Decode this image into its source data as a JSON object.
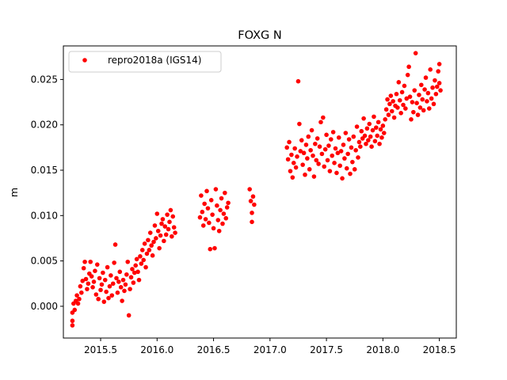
{
  "chart_data": {
    "type": "scatter",
    "title": "FOXG N",
    "xlabel": "",
    "ylabel": "m",
    "xlim": [
      2015.17,
      2018.65
    ],
    "ylim": [
      -0.0035,
      0.0287
    ],
    "xticks": [
      2015.5,
      2016.0,
      2016.5,
      2017.0,
      2017.5,
      2018.0,
      2018.5
    ],
    "xtick_labels": [
      "2015.5",
      "2016.0",
      "2016.5",
      "2017.0",
      "2017.5",
      "2018.0",
      "2018.5"
    ],
    "yticks": [
      0.0,
      0.005,
      0.01,
      0.015,
      0.02,
      0.025
    ],
    "ytick_labels": [
      "0.000",
      "0.005",
      "0.010",
      "0.015",
      "0.020",
      "0.025"
    ],
    "grid": false,
    "legend_position": "top-left",
    "series": [
      {
        "name": "repro2018a (IGS14)",
        "color": "#ff0000",
        "marker": "circle",
        "points": [
          [
            2015.25,
            -0.0021
          ],
          [
            2015.25,
            -0.0016
          ],
          [
            2015.25,
            -0.0007
          ],
          [
            2015.26,
            0.0003
          ],
          [
            2015.27,
            -0.0004
          ],
          [
            2015.28,
            0.0006
          ],
          [
            2015.29,
            0.0012
          ],
          [
            2015.3,
            0.0003
          ],
          [
            2015.31,
            0.0008
          ],
          [
            2015.32,
            0.0022
          ],
          [
            2015.33,
            0.0015
          ],
          [
            2015.34,
            0.0028
          ],
          [
            2015.35,
            0.0042
          ],
          [
            2015.36,
            0.0049
          ],
          [
            2015.37,
            0.003
          ],
          [
            2015.38,
            0.0019
          ],
          [
            2015.39,
            0.0025
          ],
          [
            2015.4,
            0.0036
          ],
          [
            2015.41,
            0.0049
          ],
          [
            2015.42,
            0.0033
          ],
          [
            2015.43,
            0.0021
          ],
          [
            2015.44,
            0.0027
          ],
          [
            2015.45,
            0.0039
          ],
          [
            2015.46,
            0.0013
          ],
          [
            2015.47,
            0.0046
          ],
          [
            2015.48,
            0.0008
          ],
          [
            2015.49,
            0.0031
          ],
          [
            2015.5,
            0.0018
          ],
          [
            2015.51,
            0.0024
          ],
          [
            2015.52,
            0.0037
          ],
          [
            2015.53,
            0.0005
          ],
          [
            2015.54,
            0.0029
          ],
          [
            2015.55,
            0.0016
          ],
          [
            2015.56,
            0.0043
          ],
          [
            2015.57,
            0.0009
          ],
          [
            2015.58,
            0.0022
          ],
          [
            2015.59,
            0.0034
          ],
          [
            2015.6,
            0.0012
          ],
          [
            2015.61,
            0.0025
          ],
          [
            2015.62,
            0.0048
          ],
          [
            2015.63,
            0.0068
          ],
          [
            2015.64,
            0.0031
          ],
          [
            2015.65,
            0.0015
          ],
          [
            2015.66,
            0.0027
          ],
          [
            2015.67,
            0.0038
          ],
          [
            2015.68,
            0.0021
          ],
          [
            2015.69,
            0.0006
          ],
          [
            2015.7,
            0.0029
          ],
          [
            2015.71,
            0.0017
          ],
          [
            2015.72,
            0.0024
          ],
          [
            2015.73,
            0.0035
          ],
          [
            2015.74,
            0.0049
          ],
          [
            2015.75,
            -0.001
          ],
          [
            2015.76,
            0.0019
          ],
          [
            2015.77,
            0.0032
          ],
          [
            2015.78,
            0.0041
          ],
          [
            2015.79,
            0.0026
          ],
          [
            2015.8,
            0.0037
          ],
          [
            2015.81,
            0.0045
          ],
          [
            2015.82,
            0.0052
          ],
          [
            2015.83,
            0.0038
          ],
          [
            2015.84,
            0.0029
          ],
          [
            2015.85,
            0.0055
          ],
          [
            2015.86,
            0.0047
          ],
          [
            2015.87,
            0.0062
          ],
          [
            2015.88,
            0.0051
          ],
          [
            2015.89,
            0.0069
          ],
          [
            2015.9,
            0.0043
          ],
          [
            2015.91,
            0.0058
          ],
          [
            2015.92,
            0.0073
          ],
          [
            2015.93,
            0.0062
          ],
          [
            2015.94,
            0.0081
          ],
          [
            2015.95,
            0.0067
          ],
          [
            2015.96,
            0.0056
          ],
          [
            2015.97,
            0.0071
          ],
          [
            2015.98,
            0.0089
          ],
          [
            2015.99,
            0.0075
          ],
          [
            2016.0,
            0.0102
          ],
          [
            2016.01,
            0.0083
          ],
          [
            2016.02,
            0.0064
          ],
          [
            2016.03,
            0.0078
          ],
          [
            2016.04,
            0.0091
          ],
          [
            2016.05,
            0.0096
          ],
          [
            2016.06,
            0.0072
          ],
          [
            2016.07,
            0.0088
          ],
          [
            2016.08,
            0.0079
          ],
          [
            2016.09,
            0.0101
          ],
          [
            2016.1,
            0.0085
          ],
          [
            2016.11,
            0.0093
          ],
          [
            2016.12,
            0.0106
          ],
          [
            2016.13,
            0.0077
          ],
          [
            2016.14,
            0.0099
          ],
          [
            2016.15,
            0.0087
          ],
          [
            2016.16,
            0.0081
          ],
          [
            2016.38,
            0.0098
          ],
          [
            2016.39,
            0.0122
          ],
          [
            2016.4,
            0.0104
          ],
          [
            2016.41,
            0.0089
          ],
          [
            2016.42,
            0.0113
          ],
          [
            2016.43,
            0.0096
          ],
          [
            2016.44,
            0.0127
          ],
          [
            2016.45,
            0.0108
          ],
          [
            2016.46,
            0.0092
          ],
          [
            2016.47,
            0.0063
          ],
          [
            2016.48,
            0.0117
          ],
          [
            2016.49,
            0.0101
          ],
          [
            2016.5,
            0.0086
          ],
          [
            2016.51,
            0.0064
          ],
          [
            2016.52,
            0.0129
          ],
          [
            2016.53,
            0.0111
          ],
          [
            2016.54,
            0.0095
          ],
          [
            2016.55,
            0.0083
          ],
          [
            2016.56,
            0.0106
          ],
          [
            2016.57,
            0.0119
          ],
          [
            2016.58,
            0.0091
          ],
          [
            2016.59,
            0.0102
          ],
          [
            2016.6,
            0.0125
          ],
          [
            2016.61,
            0.0097
          ],
          [
            2016.62,
            0.0109
          ],
          [
            2016.63,
            0.0114
          ],
          [
            2016.82,
            0.0129
          ],
          [
            2016.83,
            0.0116
          ],
          [
            2016.84,
            0.0103
          ],
          [
            2016.84,
            0.0093
          ],
          [
            2016.85,
            0.0121
          ],
          [
            2016.86,
            0.0112
          ],
          [
            2017.15,
            0.0175
          ],
          [
            2017.16,
            0.0162
          ],
          [
            2017.17,
            0.0181
          ],
          [
            2017.18,
            0.0149
          ],
          [
            2017.19,
            0.0167
          ],
          [
            2017.2,
            0.0142
          ],
          [
            2017.21,
            0.0158
          ],
          [
            2017.22,
            0.0174
          ],
          [
            2017.23,
            0.0153
          ],
          [
            2017.24,
            0.0165
          ],
          [
            2017.25,
            0.0248
          ],
          [
            2017.26,
            0.0201
          ],
          [
            2017.27,
            0.0171
          ],
          [
            2017.28,
            0.0183
          ],
          [
            2017.29,
            0.0156
          ],
          [
            2017.3,
            0.0169
          ],
          [
            2017.31,
            0.0145
          ],
          [
            2017.32,
            0.0178
          ],
          [
            2017.33,
            0.0163
          ],
          [
            2017.34,
            0.0187
          ],
          [
            2017.35,
            0.0151
          ],
          [
            2017.36,
            0.0172
          ],
          [
            2017.37,
            0.0194
          ],
          [
            2017.38,
            0.0166
          ],
          [
            2017.39,
            0.0143
          ],
          [
            2017.4,
            0.0179
          ],
          [
            2017.41,
            0.0161
          ],
          [
            2017.42,
            0.0185
          ],
          [
            2017.43,
            0.0157
          ],
          [
            2017.44,
            0.0176
          ],
          [
            2017.45,
            0.0203
          ],
          [
            2017.46,
            0.0168
          ],
          [
            2017.47,
            0.0208
          ],
          [
            2017.48,
            0.0154
          ],
          [
            2017.49,
            0.0173
          ],
          [
            2017.5,
            0.0189
          ],
          [
            2017.51,
            0.0161
          ],
          [
            2017.52,
            0.0177
          ],
          [
            2017.53,
            0.0149
          ],
          [
            2017.54,
            0.0184
          ],
          [
            2017.55,
            0.0166
          ],
          [
            2017.56,
            0.0192
          ],
          [
            2017.57,
            0.0158
          ],
          [
            2017.58,
            0.0174
          ],
          [
            2017.59,
            0.0147
          ],
          [
            2017.6,
            0.0169
          ],
          [
            2017.61,
            0.0186
          ],
          [
            2017.62,
            0.0155
          ],
          [
            2017.63,
            0.0171
          ],
          [
            2017.64,
            0.0141
          ],
          [
            2017.65,
            0.0178
          ],
          [
            2017.66,
            0.0163
          ],
          [
            2017.67,
            0.0191
          ],
          [
            2017.68,
            0.0152
          ],
          [
            2017.69,
            0.0168
          ],
          [
            2017.7,
            0.0184
          ],
          [
            2017.71,
            0.0146
          ],
          [
            2017.72,
            0.0175
          ],
          [
            2017.73,
            0.0159
          ],
          [
            2017.74,
            0.0187
          ],
          [
            2017.75,
            0.0151
          ],
          [
            2017.76,
            0.0172
          ],
          [
            2017.77,
            0.0198
          ],
          [
            2017.78,
            0.0164
          ],
          [
            2017.79,
            0.0181
          ],
          [
            2017.8,
            0.0176
          ],
          [
            2017.81,
            0.0193
          ],
          [
            2017.82,
            0.0185
          ],
          [
            2017.83,
            0.0207
          ],
          [
            2017.84,
            0.0188
          ],
          [
            2017.85,
            0.0179
          ],
          [
            2017.86,
            0.0196
          ],
          [
            2017.87,
            0.0183
          ],
          [
            2017.88,
            0.0201
          ],
          [
            2017.89,
            0.0187
          ],
          [
            2017.9,
            0.0176
          ],
          [
            2017.91,
            0.0194
          ],
          [
            2017.92,
            0.0209
          ],
          [
            2017.93,
            0.0182
          ],
          [
            2017.94,
            0.0197
          ],
          [
            2017.95,
            0.0188
          ],
          [
            2017.96,
            0.0203
          ],
          [
            2017.97,
            0.0179
          ],
          [
            2017.98,
            0.0195
          ],
          [
            2017.99,
            0.0186
          ],
          [
            2018.0,
            0.0199
          ],
          [
            2018.01,
            0.0191
          ],
          [
            2018.02,
            0.0206
          ],
          [
            2018.03,
            0.0217
          ],
          [
            2018.04,
            0.0228
          ],
          [
            2018.05,
            0.0211
          ],
          [
            2018.06,
            0.0223
          ],
          [
            2018.07,
            0.0232
          ],
          [
            2018.08,
            0.0215
          ],
          [
            2018.09,
            0.0226
          ],
          [
            2018.1,
            0.0208
          ],
          [
            2018.11,
            0.0221
          ],
          [
            2018.12,
            0.0234
          ],
          [
            2018.13,
            0.0219
          ],
          [
            2018.14,
            0.0247
          ],
          [
            2018.15,
            0.0227
          ],
          [
            2018.16,
            0.0213
          ],
          [
            2018.17,
            0.0236
          ],
          [
            2018.18,
            0.0222
          ],
          [
            2018.19,
            0.0243
          ],
          [
            2018.2,
            0.0218
          ],
          [
            2018.21,
            0.0229
          ],
          [
            2018.22,
            0.0255
          ],
          [
            2018.23,
            0.0264
          ],
          [
            2018.24,
            0.0231
          ],
          [
            2018.25,
            0.0206
          ],
          [
            2018.26,
            0.0225
          ],
          [
            2018.27,
            0.0214
          ],
          [
            2018.28,
            0.0238
          ],
          [
            2018.29,
            0.0279
          ],
          [
            2018.3,
            0.0224
          ],
          [
            2018.31,
            0.0211
          ],
          [
            2018.32,
            0.0233
          ],
          [
            2018.33,
            0.0219
          ],
          [
            2018.34,
            0.0244
          ],
          [
            2018.35,
            0.0228
          ],
          [
            2018.36,
            0.0216
          ],
          [
            2018.37,
            0.0239
          ],
          [
            2018.38,
            0.0252
          ],
          [
            2018.39,
            0.0226
          ],
          [
            2018.4,
            0.0235
          ],
          [
            2018.41,
            0.0218
          ],
          [
            2018.42,
            0.0261
          ],
          [
            2018.43,
            0.0229
          ],
          [
            2018.44,
            0.0241
          ],
          [
            2018.45,
            0.0223
          ],
          [
            2018.46,
            0.0249
          ],
          [
            2018.47,
            0.0234
          ],
          [
            2018.48,
            0.0242
          ],
          [
            2018.49,
            0.0259
          ],
          [
            2018.5,
            0.0267
          ],
          [
            2018.5,
            0.0246
          ],
          [
            2018.51,
            0.0238
          ]
        ]
      }
    ]
  }
}
